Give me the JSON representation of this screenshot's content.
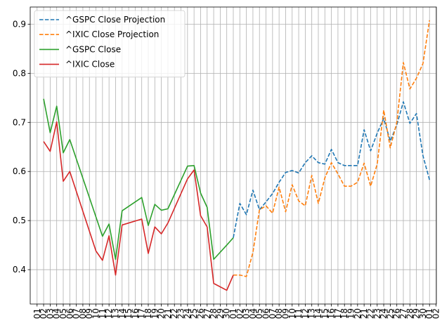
{
  "chart_data": {
    "type": "line",
    "grid": true,
    "legend_position": "top-left",
    "ylim": [
      0.33,
      0.935
    ],
    "y_ticks": [
      "0.4",
      "0.5",
      "0.6",
      "0.7",
      "0.8",
      "0.9"
    ],
    "x_tick_labels": [
      "01",
      "02",
      "03",
      "04",
      "05",
      "06",
      "07",
      "08",
      "09",
      "10",
      "11",
      "12",
      "13",
      "14",
      "15",
      "16",
      "17",
      "18",
      "19",
      "20",
      "21",
      "22",
      "23",
      "24",
      "25",
      "26",
      "27",
      "28",
      "29",
      "30",
      "01",
      "02",
      "03",
      "04",
      "05",
      "06",
      "07",
      "08",
      "09",
      "10",
      "11",
      "12",
      "13",
      "14",
      "15",
      "16",
      "17",
      "18",
      "19",
      "20",
      "21",
      "22",
      "23",
      "24",
      "25",
      "26",
      "27",
      "28",
      "29",
      "30",
      "01",
      "02"
    ],
    "series": [
      {
        "name": "^GSPC Close Projection",
        "color": "#1f77b4",
        "dashed": true,
        "points": [
          [
            31,
            0.465
          ],
          [
            32,
            0.535
          ],
          [
            33,
            0.512
          ],
          [
            34,
            0.562
          ],
          [
            35,
            0.522
          ],
          [
            36,
            0.538
          ],
          [
            37,
            0.555
          ],
          [
            38,
            0.578
          ],
          [
            39,
            0.598
          ],
          [
            40,
            0.602
          ],
          [
            41,
            0.597
          ],
          [
            42,
            0.618
          ],
          [
            43,
            0.632
          ],
          [
            44,
            0.618
          ],
          [
            45,
            0.615
          ],
          [
            46,
            0.645
          ],
          [
            47,
            0.618
          ],
          [
            48,
            0.612
          ],
          [
            49,
            0.612
          ],
          [
            50,
            0.612
          ],
          [
            51,
            0.685
          ],
          [
            52,
            0.642
          ],
          [
            53,
            0.678
          ],
          [
            54,
            0.708
          ],
          [
            55,
            0.662
          ],
          [
            56,
            0.695
          ],
          [
            57,
            0.742
          ],
          [
            58,
            0.698
          ],
          [
            59,
            0.718
          ],
          [
            60,
            0.632
          ],
          [
            61,
            0.583
          ]
        ]
      },
      {
        "name": "^IXIC Close Projection",
        "color": "#ff7f0e",
        "dashed": true,
        "points": [
          [
            31,
            0.389
          ],
          [
            32,
            0.389
          ],
          [
            33,
            0.386
          ],
          [
            34,
            0.435
          ],
          [
            35,
            0.522
          ],
          [
            36,
            0.53
          ],
          [
            37,
            0.515
          ],
          [
            38,
            0.568
          ],
          [
            39,
            0.518
          ],
          [
            40,
            0.573
          ],
          [
            41,
            0.54
          ],
          [
            42,
            0.53
          ],
          [
            43,
            0.592
          ],
          [
            44,
            0.535
          ],
          [
            45,
            0.587
          ],
          [
            46,
            0.618
          ],
          [
            47,
            0.595
          ],
          [
            48,
            0.57
          ],
          [
            49,
            0.57
          ],
          [
            50,
            0.578
          ],
          [
            51,
            0.617
          ],
          [
            52,
            0.57
          ],
          [
            53,
            0.615
          ],
          [
            54,
            0.725
          ],
          [
            55,
            0.648
          ],
          [
            56,
            0.7
          ],
          [
            57,
            0.822
          ],
          [
            58,
            0.768
          ],
          [
            59,
            0.79
          ],
          [
            60,
            0.82
          ],
          [
            61,
            0.908
          ]
        ]
      },
      {
        "name": "^GSPC Close",
        "color": "#2ca02c",
        "dashed": false,
        "points": [
          [
            2,
            0.748
          ],
          [
            3,
            0.679
          ],
          [
            4,
            0.733
          ],
          [
            5,
            0.638
          ],
          [
            6,
            0.665
          ],
          [
            11,
            0.468
          ],
          [
            12,
            0.493
          ],
          [
            13,
            0.421
          ],
          [
            14,
            0.52
          ],
          [
            17,
            0.547
          ],
          [
            18,
            0.49
          ],
          [
            19,
            0.533
          ],
          [
            20,
            0.521
          ],
          [
            21,
            0.524
          ],
          [
            24,
            0.611
          ],
          [
            25,
            0.612
          ],
          [
            26,
            0.556
          ],
          [
            27,
            0.527
          ],
          [
            28,
            0.421
          ],
          [
            30,
            0.45
          ],
          [
            31,
            0.465
          ]
        ]
      },
      {
        "name": "^IXIC Close",
        "color": "#d62728",
        "dashed": false,
        "points": [
          [
            2,
            0.661
          ],
          [
            3,
            0.641
          ],
          [
            4,
            0.701
          ],
          [
            5,
            0.58
          ],
          [
            6,
            0.6
          ],
          [
            10,
            0.438
          ],
          [
            11,
            0.419
          ],
          [
            12,
            0.469
          ],
          [
            13,
            0.389
          ],
          [
            14,
            0.491
          ],
          [
            17,
            0.503
          ],
          [
            18,
            0.433
          ],
          [
            19,
            0.487
          ],
          [
            20,
            0.473
          ],
          [
            21,
            0.495
          ],
          [
            24,
            0.585
          ],
          [
            25,
            0.603
          ],
          [
            26,
            0.51
          ],
          [
            27,
            0.487
          ],
          [
            28,
            0.372
          ],
          [
            30,
            0.358
          ],
          [
            31,
            0.389
          ]
        ]
      }
    ]
  }
}
